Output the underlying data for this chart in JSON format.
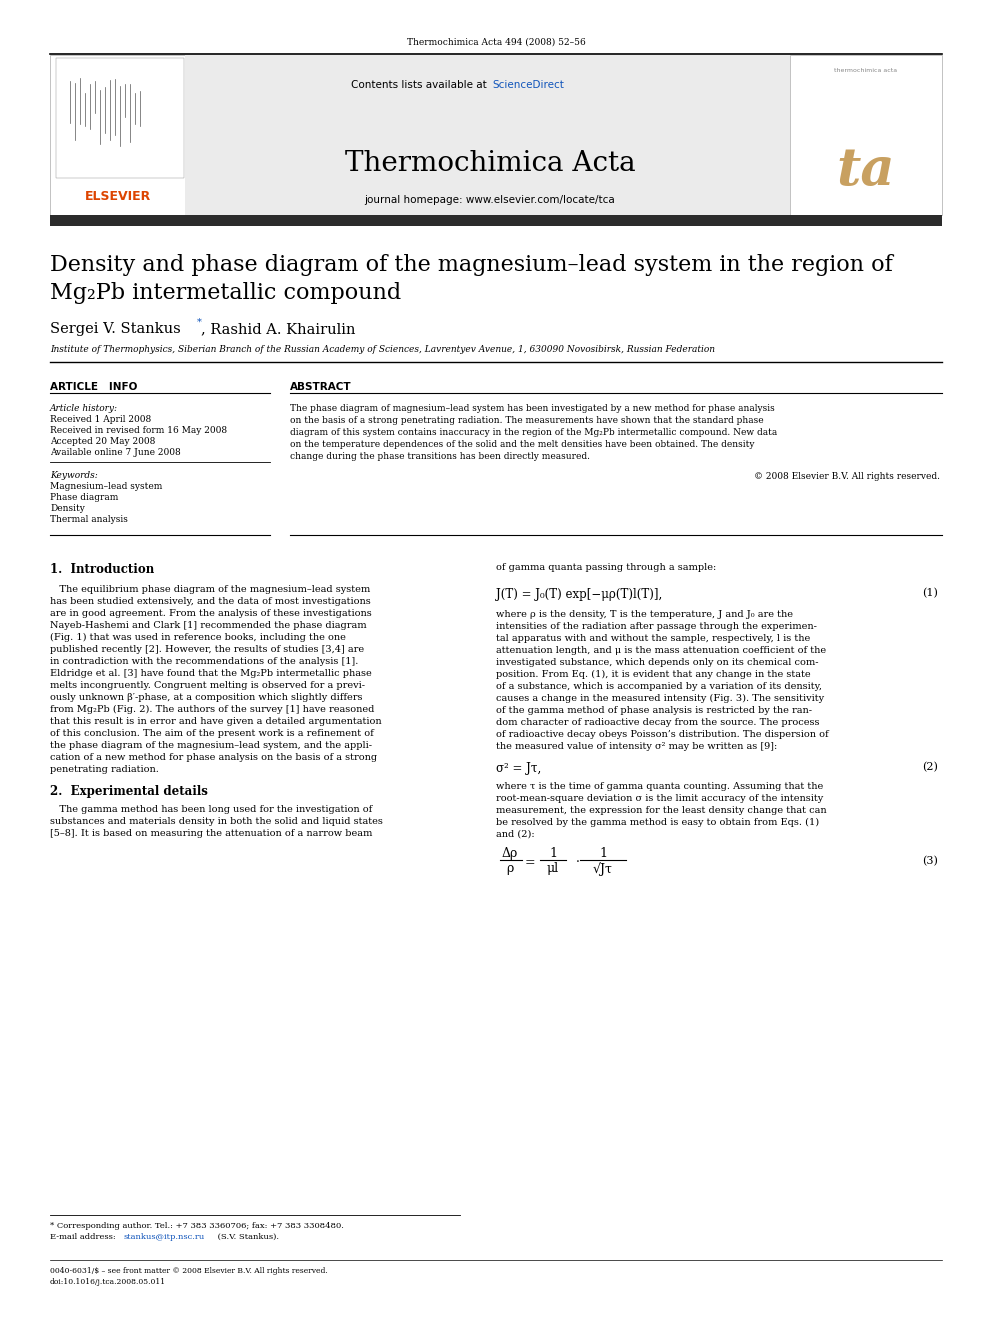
{
  "bg_color": "#ffffff",
  "journal_ref": "Thermochimica Acta 494 (2008) 52–56",
  "journal_title": "Thermochimica Acta",
  "journal_homepage": "journal homepage: www.elsevier.com/locate/tca",
  "contents_text": "Contents lists available at ",
  "science_direct": "ScienceDirect",
  "article_title_line1": "Density and phase diagram of the magnesium–lead system in the region of",
  "article_title_line2": "Mg₂Pb intermetallic compound",
  "author_name1": "Sergei V. Stankus",
  "author_star": "*",
  "author_name2": ", Rashid A. Khairulin",
  "affiliation": "Institute of Thermophysics, Siberian Branch of the Russian Academy of Sciences, Lavrentyev Avenue, 1, 630090 Novosibirsk, Russian Federation",
  "article_info_header": "ARTICLE   INFO",
  "abstract_header": "ABSTRACT",
  "article_history_label": "Article history:",
  "received1": "Received 1 April 2008",
  "received2": "Received in revised form 16 May 2008",
  "accepted": "Accepted 20 May 2008",
  "available": "Available online 7 June 2008",
  "keywords_label": "Keywords:",
  "keyword1": "Magnesium–lead system",
  "keyword2": "Phase diagram",
  "keyword3": "Density",
  "keyword4": "Thermal analysis",
  "abstract_lines": [
    "The phase diagram of magnesium–lead system has been investigated by a new method for phase analysis",
    "on the basis of a strong penetrating radiation. The measurements have shown that the standard phase",
    "diagram of this system contains inaccuracy in the region of the Mg₂Pb intermetallic compound. New data",
    "on the temperature dependences of the solid and the melt densities have been obtained. The density",
    "change during the phase transitions has been directly measured."
  ],
  "copyright": "© 2008 Elsevier B.V. All rights reserved.",
  "section1_header": "1.  Introduction",
  "intro_lines_left": [
    "   The equilibrium phase diagram of the magnesium–lead system",
    "has been studied extensively, and the data of most investigations",
    "are in good agreement. From the analysis of these investigations",
    "Nayeb-Hashemi and Clark [1] recommended the phase diagram",
    "(Fig. 1) that was used in reference books, including the one",
    "published recently [2]. However, the results of studies [3,4] are",
    "in contradiction with the recommendations of the analysis [1].",
    "Eldridge et al. [3] have found that the Mg₂Pb intermetallic phase",
    "melts incongruently. Congruent melting is observed for a previ-",
    "ously unknown β′-phase, at a composition which slightly differs",
    "from Mg₂Pb (Fig. 2). The authors of the survey [1] have reasoned",
    "that this result is in error and have given a detailed argumentation",
    "of this conclusion. The aim of the present work is a refinement of",
    "the phase diagram of the magnesium–lead system, and the appli-",
    "cation of a new method for phase analysis on the basis of a strong",
    "penetrating radiation."
  ],
  "section2_header": "2.  Experimental details",
  "exp_lines": [
    "   The gamma method has been long used for the investigation of",
    "substances and materials density in both the solid and liquid states",
    "[5–8]. It is based on measuring the attenuation of a narrow beam"
  ],
  "right_col_intro": "of gamma quanta passing through a sample:",
  "equation1": "J(T) = J₀(T) exp[−μρ(T)l(T)],",
  "eq1_number": "(1)",
  "eq1_lines": [
    "where ρ is the density, T is the temperature, J and J₀ are the",
    "intensities of the radiation after passage through the experimen-",
    "tal apparatus with and without the sample, respectively, l is the",
    "attenuation length, and μ is the mass attenuation coefficient of the",
    "investigated substance, which depends only on its chemical com-",
    "position. From Eq. (1), it is evident that any change in the state",
    "of a substance, which is accompanied by a variation of its density,",
    "causes a change in the measured intensity (Fig. 3). The sensitivity",
    "of the gamma method of phase analysis is restricted by the ran-",
    "dom character of radioactive decay from the source. The process",
    "of radioactive decay obeys Poisson’s distribution. The dispersion of",
    "the measured value of intensity σ² may be written as [9]:"
  ],
  "equation2": "σ² = Jτ,",
  "eq2_number": "(2)",
  "eq2_lines": [
    "where τ is the time of gamma quanta counting. Assuming that the",
    "root-mean-square deviation σ is the limit accuracy of the intensity",
    "measurement, the expression for the least density change that can",
    "be resolved by the gamma method is easy to obtain from Eqs. (1)",
    "and (2):"
  ],
  "eq3_number": "(3)",
  "footnote_star": "* Corresponding author. Tel.: +7 383 3360706; fax: +7 383 3308480.",
  "footnote_email_pre": "E-mail address: ",
  "footnote_email_link": "stankus@itp.nsc.ru",
  "footnote_email_post": " (S.V. Stankus).",
  "footer_line1": "0040-6031/$ – see front matter © 2008 Elsevier B.V. All rights reserved.",
  "footer_line2": "doi:10.1016/j.tca.2008.05.011",
  "header_bg": "#ebebeb",
  "dark_bar_color": "#2b2b2b",
  "blue_text": "#1155bb",
  "orange_elsevier": "#dd4400",
  "ta_color": "#c8a060",
  "gray_light": "#e8e8e8"
}
